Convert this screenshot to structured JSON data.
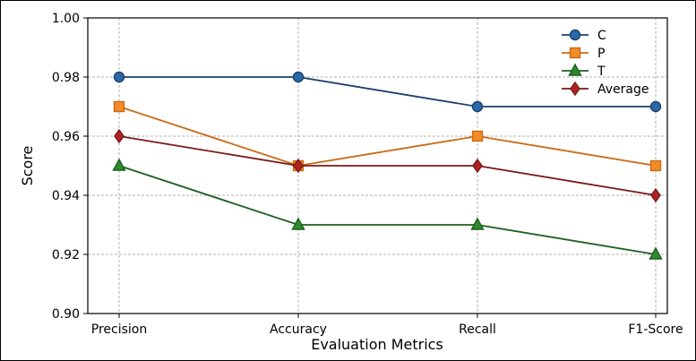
{
  "chart_data": {
    "type": "line",
    "title": "",
    "xlabel": "Evaluation Metrics",
    "ylabel": "Score",
    "categories": [
      "Precision",
      "Accuracy",
      "Recall",
      "F1-Score"
    ],
    "ylim": [
      0.9,
      1.0
    ],
    "yticks": [
      "0.90",
      "0.92",
      "0.94",
      "0.96",
      "0.98",
      "1.00"
    ],
    "grid": true,
    "legend_position": "top-right",
    "series": [
      {
        "name": "C",
        "values": [
          0.98,
          0.98,
          0.97,
          0.97
        ],
        "color": "#1f3f6e",
        "fill": "#2a6aa8",
        "marker": "circle"
      },
      {
        "name": "P",
        "values": [
          0.97,
          0.95,
          0.96,
          0.95
        ],
        "color": "#cc6a14",
        "fill": "#f28c28",
        "marker": "square"
      },
      {
        "name": "T",
        "values": [
          0.95,
          0.93,
          0.93,
          0.92
        ],
        "color": "#1e5e1e",
        "fill": "#2e8b2e",
        "marker": "triangle"
      },
      {
        "name": "Average",
        "values": [
          0.96,
          0.95,
          0.95,
          0.94
        ],
        "color": "#7a1a1a",
        "fill": "#b22222",
        "marker": "diamond"
      }
    ]
  }
}
